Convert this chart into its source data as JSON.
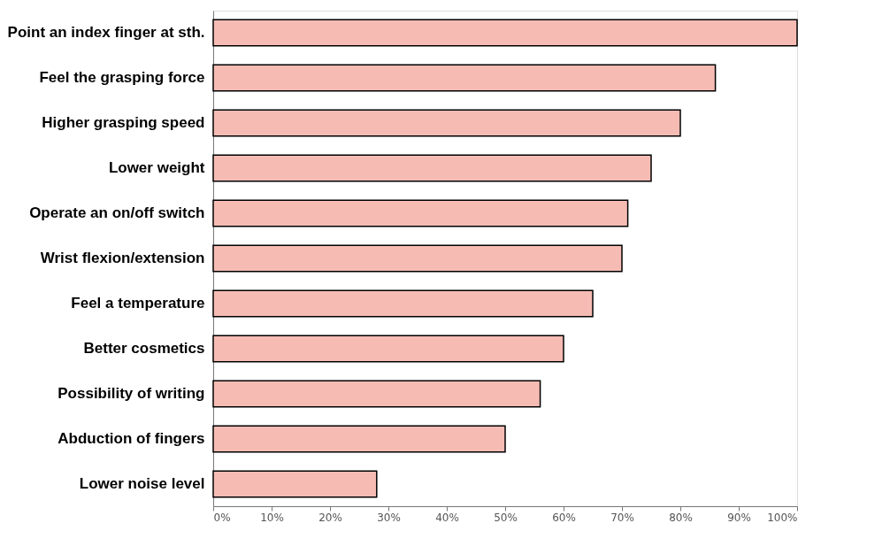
{
  "chart_data": {
    "type": "bar",
    "orientation": "horizontal",
    "categories": [
      "Point an index finger at sth.",
      "Feel the grasping force",
      "Higher grasping  speed",
      "Lower weight",
      "Operate an on/off switch",
      "Wrist flexion/extension",
      "Feel a temperature",
      "Better cosmetics",
      "Possibility of writing",
      "Abduction of fingers",
      "Lower noise level"
    ],
    "values": [
      100,
      86,
      80,
      75,
      71,
      70,
      65,
      60,
      56,
      50,
      28
    ],
    "color": "#f6bcb4",
    "xlim": [
      0,
      100
    ],
    "xticks": [
      {
        "value": 0,
        "label": "0%"
      },
      {
        "value": 10,
        "label": "10%"
      },
      {
        "value": 20,
        "label": "20%"
      },
      {
        "value": 30,
        "label": "30%"
      },
      {
        "value": 40,
        "label": "40%"
      },
      {
        "value": 50,
        "label": "50%"
      },
      {
        "value": 60,
        "label": "60%"
      },
      {
        "value": 70,
        "label": "70%"
      },
      {
        "value": 80,
        "label": "80%"
      },
      {
        "value": 90,
        "label": "90%"
      },
      {
        "value": 100,
        "label": "100%"
      }
    ],
    "grid": false
  }
}
